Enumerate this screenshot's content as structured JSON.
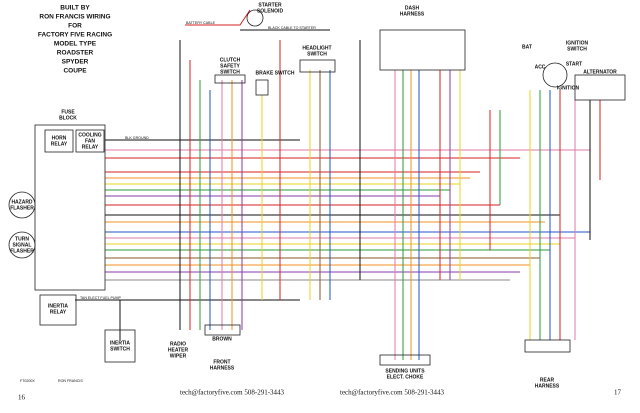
{
  "title": [
    "BUILT BY",
    "RON FRANCIS WIRING",
    "FOR",
    "FACTORY FIVE RACING",
    "MODEL TYPE",
    "ROADSTER",
    "SPYDER",
    "COUPE"
  ],
  "components": {
    "starter_solenoid": [
      "STARTER",
      "SOLENOID"
    ],
    "dash_harness": [
      "DASH",
      "HARNESS"
    ],
    "clutch_safety_switch": [
      "CLUTCH",
      "SAFETY",
      "SWITCH"
    ],
    "brake_switch": "BRAKE SWITCH",
    "headlight_switch": [
      "HEADLIGHT",
      "SWITCH"
    ],
    "bat": "BAT",
    "ignition_switch": [
      "IGNITION",
      "SWITCH"
    ],
    "acc": "ACC",
    "start": "START",
    "ignition": "IGNITION",
    "alternator": "ALTERNATOR",
    "fuse_block": [
      "FUSE",
      "BLOCK"
    ],
    "horn_relay": [
      "HORN",
      "RELAY"
    ],
    "cooling_fan_relay": [
      "COOLING",
      "FAN",
      "RELAY"
    ],
    "hazard_flasher": [
      "HAZARD",
      "FLASHER"
    ],
    "turn_signal_flasher": [
      "TURN",
      "SIGNAL",
      "FLASHER"
    ],
    "inertia_relay": [
      "INERTIA",
      "RELAY"
    ],
    "inertia_switch": [
      "INERTIA",
      "SWITCH"
    ],
    "brown": "BROWN",
    "radio_heater_wiper": [
      "RADIO",
      "HEATER",
      "WIPER"
    ],
    "front_harness": [
      "FRONT",
      "HARNESS"
    ],
    "sending_units": [
      "SENDING UNITS",
      "ELECT. CHOKE"
    ],
    "rear_harness": [
      "REAR",
      "HARNESS"
    ]
  },
  "wire_labels": [
    "BATTERY CABLE",
    "BLACK CABLE TO STARTER",
    "BLK GROUND",
    "TAN ELECT FUEL PUMP"
  ],
  "footer": {
    "code": "FT0200X",
    "credit": "RON FRANCIS",
    "left_contact": "tech@factoryfive.com 508-291-3443",
    "right_contact": "tech@factoryfive.com 508-291-3443",
    "left_page": "16",
    "right_page": "17"
  }
}
